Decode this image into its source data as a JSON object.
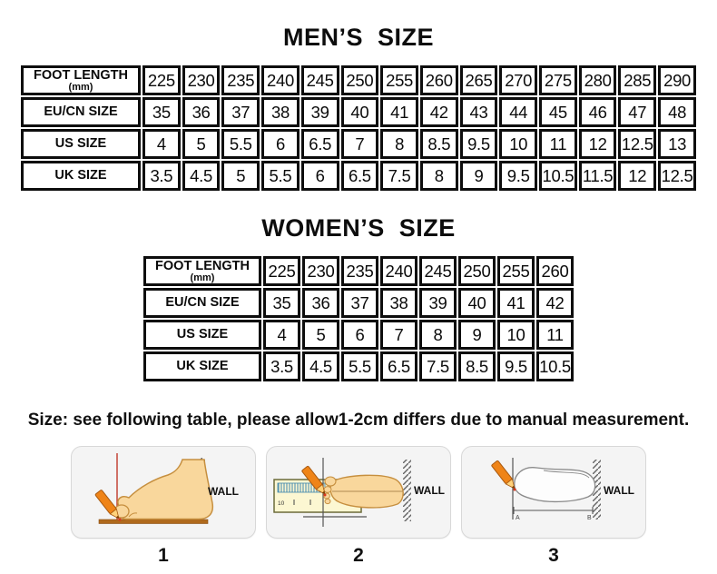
{
  "titles": {
    "men": "MEN’S  SIZE",
    "women": "WOMEN’S  SIZE"
  },
  "note": "Size: see following table, please allow1-2cm differs due to manual measurement.",
  "men_table": {
    "rows": [
      {
        "label": "FOOT LENGTH",
        "sublabel": "(mm)",
        "values": [
          "225",
          "230",
          "235",
          "240",
          "245",
          "250",
          "255",
          "260",
          "265",
          "270",
          "275",
          "280",
          "285",
          "290"
        ]
      },
      {
        "label": "EU/CN SIZE",
        "values": [
          "35",
          "36",
          "37",
          "38",
          "39",
          "40",
          "41",
          "42",
          "43",
          "44",
          "45",
          "46",
          "47",
          "48"
        ]
      },
      {
        "label": "US SIZE",
        "values": [
          "4",
          "5",
          "5.5",
          "6",
          "6.5",
          "7",
          "8",
          "8.5",
          "9.5",
          "10",
          "11",
          "12",
          "12.5",
          "13"
        ]
      },
      {
        "label": "UK SIZE",
        "values": [
          "3.5",
          "4.5",
          "5",
          "5.5",
          "6",
          "6.5",
          "7.5",
          "8",
          "9",
          "9.5",
          "10.5",
          "11.5",
          "12",
          "12.5"
        ]
      }
    ]
  },
  "women_table": {
    "rows": [
      {
        "label": "FOOT LENGTH",
        "sublabel": "(mm)",
        "values": [
          "225",
          "230",
          "235",
          "240",
          "245",
          "250",
          "255",
          "260"
        ]
      },
      {
        "label": "EU/CN SIZE",
        "values": [
          "35",
          "36",
          "37",
          "38",
          "39",
          "40",
          "41",
          "42"
        ]
      },
      {
        "label": "US SIZE",
        "values": [
          "4",
          "5",
          "6",
          "7",
          "8",
          "9",
          "10",
          "11"
        ]
      },
      {
        "label": "UK SIZE",
        "values": [
          "3.5",
          "4.5",
          "5.5",
          "6.5",
          "7.5",
          "8.5",
          "9.5",
          "10.5"
        ]
      }
    ]
  },
  "figures": [
    {
      "number": "1",
      "wall_label": "WALL"
    },
    {
      "number": "2",
      "wall_label": "WALL",
      "ruler_label": "10"
    },
    {
      "number": "3",
      "wall_label": "WALL",
      "point_a": "A",
      "point_b": "B"
    }
  ],
  "colors": {
    "table_border": "#0d0d0d",
    "foot_skin": "#f9d79c",
    "foot_outline": "#c68f3f",
    "pencil_orange": "#ef8418",
    "pencil_outline": "#a85a12",
    "red_mark_line": "#c0392b",
    "ground_brown": "#b06a1d",
    "ruler_fill": "#fcf7d2",
    "ruler_ticks_teal": "#3f87ad",
    "figure_box_bg": "#f4f4f4",
    "wall_hatch": "#666666"
  }
}
